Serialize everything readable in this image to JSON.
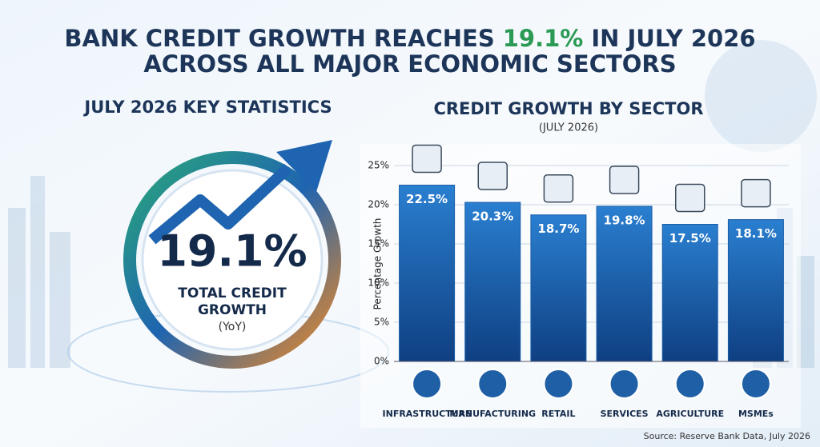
{
  "headline": {
    "lead": "BANK CREDIT GROWTH REACHES",
    "highlight": "19.1%",
    "trail": "IN JULY 2026",
    "line2": "ACROSS ALL MAJOR ECONOMIC SECTORS"
  },
  "key_statistics": {
    "title": "JULY 2026 KEY STATISTICS",
    "value": "19.1%",
    "label_line1": "TOTAL CREDIT",
    "label_line2": "GROWTH",
    "note": "(YoY)"
  },
  "chart_data": {
    "type": "bar",
    "title": "CREDIT GROWTH BY SECTOR",
    "subtitle": "(JULY 2026)",
    "y_label": "Percentage Growth",
    "categories": [
      "INFRASTRUCTURE",
      "MANUFACTURING",
      "RETAIL",
      "SERVICES",
      "AGRICULTURE",
      "MSMEs"
    ],
    "values": [
      22.5,
      20.3,
      18.7,
      19.8,
      17.5,
      18.1
    ],
    "value_labels": [
      "22.5%",
      "20.3%",
      "18.7%",
      "19.8%",
      "17.5%",
      "18.1%"
    ],
    "color": "#1a5ea8",
    "ylim": [
      0,
      25
    ],
    "yticks": [
      {
        "value": 0,
        "label": "0%"
      },
      {
        "value": 5,
        "label": "5%"
      },
      {
        "value": 10,
        "label": "10%"
      },
      {
        "value": 15,
        "label": "15%"
      },
      {
        "value": 20,
        "label": "20%"
      },
      {
        "value": 25,
        "label": "25%"
      }
    ],
    "grid": true
  },
  "source": "Source: Reserve Bank Data, July 2026"
}
